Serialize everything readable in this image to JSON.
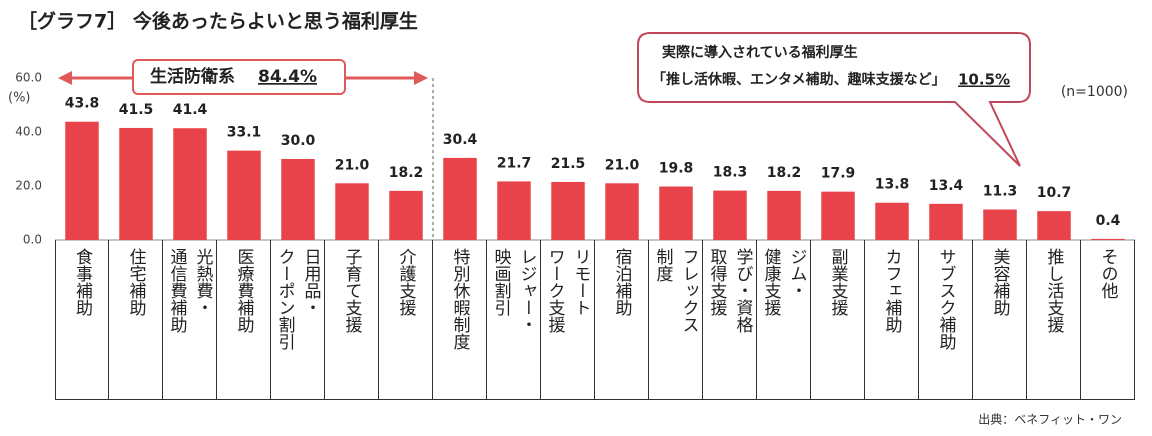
{
  "chart_data": {
    "type": "bar",
    "title": "［グラフ7］ 今後あったらよいと思う福利厚生",
    "y_unit": "(%)",
    "sample_note": "(n=1000)",
    "source": "出典：ベネフィット・ワン",
    "group_annotation": {
      "label": "生活防衛系",
      "value_label": "84.4%"
    },
    "callout": {
      "line1": "実際に導入されている福利厚生",
      "line2": "「推し活休暇、エンタメ補助、趣味支援など」",
      "value_label": "10.5%"
    },
    "categories": [
      "食事補助",
      "住宅補助",
      "光熱費・\n通信費補助",
      "医療費補助",
      "日用品・\nクーポン割引",
      "子育て支援",
      "介護支援",
      "特別休暇制度",
      "レジャー・\n映画割引",
      "リモート\nワーク支援",
      "宿泊補助",
      "フレックス\n制度",
      "学び・資格\n取得支援",
      "ジム・\n健康支援",
      "副業支援",
      "カフェ補助",
      "サブスク補助",
      "美容補助",
      "推し活支援",
      "その他"
    ],
    "values": [
      43.8,
      41.5,
      41.4,
      33.1,
      30.0,
      21.0,
      18.2,
      30.4,
      21.7,
      21.5,
      21.0,
      19.8,
      18.3,
      18.2,
      17.9,
      13.8,
      13.4,
      11.3,
      10.7,
      0.4
    ],
    "value_labels": [
      "43.8",
      "41.5",
      "41.4",
      "33.1",
      "30.0",
      "21.0",
      "18.2",
      "30.4",
      "21.7",
      "21.5",
      "21.0",
      "19.8",
      "18.3",
      "18.2",
      "17.9",
      "13.8",
      "13.4",
      "11.3",
      "10.7",
      "0.4"
    ],
    "color": "#e8434a",
    "ylim": [
      0,
      60
    ],
    "yticks": [
      {
        "value": 0,
        "label": "0.0"
      },
      {
        "value": 20,
        "label": "20.0"
      },
      {
        "value": 40,
        "label": "40.0"
      },
      {
        "value": 60,
        "label": "60.0"
      }
    ],
    "grid": false
  }
}
